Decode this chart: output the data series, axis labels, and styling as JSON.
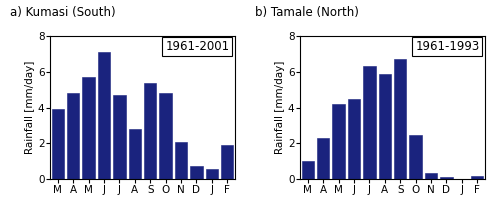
{
  "kumasi": {
    "title": "a) Kumasi (South)",
    "legend": "1961-2001",
    "months": [
      "M",
      "A",
      "M",
      "J",
      "J",
      "A",
      "S",
      "O",
      "N",
      "D",
      "J",
      "F"
    ],
    "values": [
      3.9,
      4.8,
      5.7,
      7.1,
      4.7,
      2.8,
      5.4,
      4.8,
      2.1,
      0.75,
      0.6,
      1.9
    ],
    "ylabel": "Rainfall [mm/day]",
    "ylim": [
      0,
      8
    ],
    "yticks": [
      0,
      2,
      4,
      6,
      8
    ]
  },
  "tamale": {
    "title": "b) Tamale (North)",
    "legend": "1961-1993",
    "months": [
      "M",
      "A",
      "M",
      "J",
      "J",
      "A",
      "S",
      "O",
      "N",
      "D",
      "J",
      "F"
    ],
    "values": [
      1.0,
      2.3,
      4.2,
      4.5,
      6.3,
      5.85,
      6.7,
      2.5,
      0.35,
      0.15,
      0.02,
      0.2
    ],
    "ylabel": "Rainfall [mm/day]",
    "ylim": [
      0,
      8
    ],
    "yticks": [
      0,
      2,
      4,
      6,
      8
    ]
  },
  "bar_color": "#1a237e",
  "bar_edge_color": "#1a237e",
  "background_color": "#ffffff",
  "title_fontsize": 8.5,
  "tick_fontsize": 7.5,
  "ylabel_fontsize": 7.5,
  "legend_fontsize": 8.5
}
